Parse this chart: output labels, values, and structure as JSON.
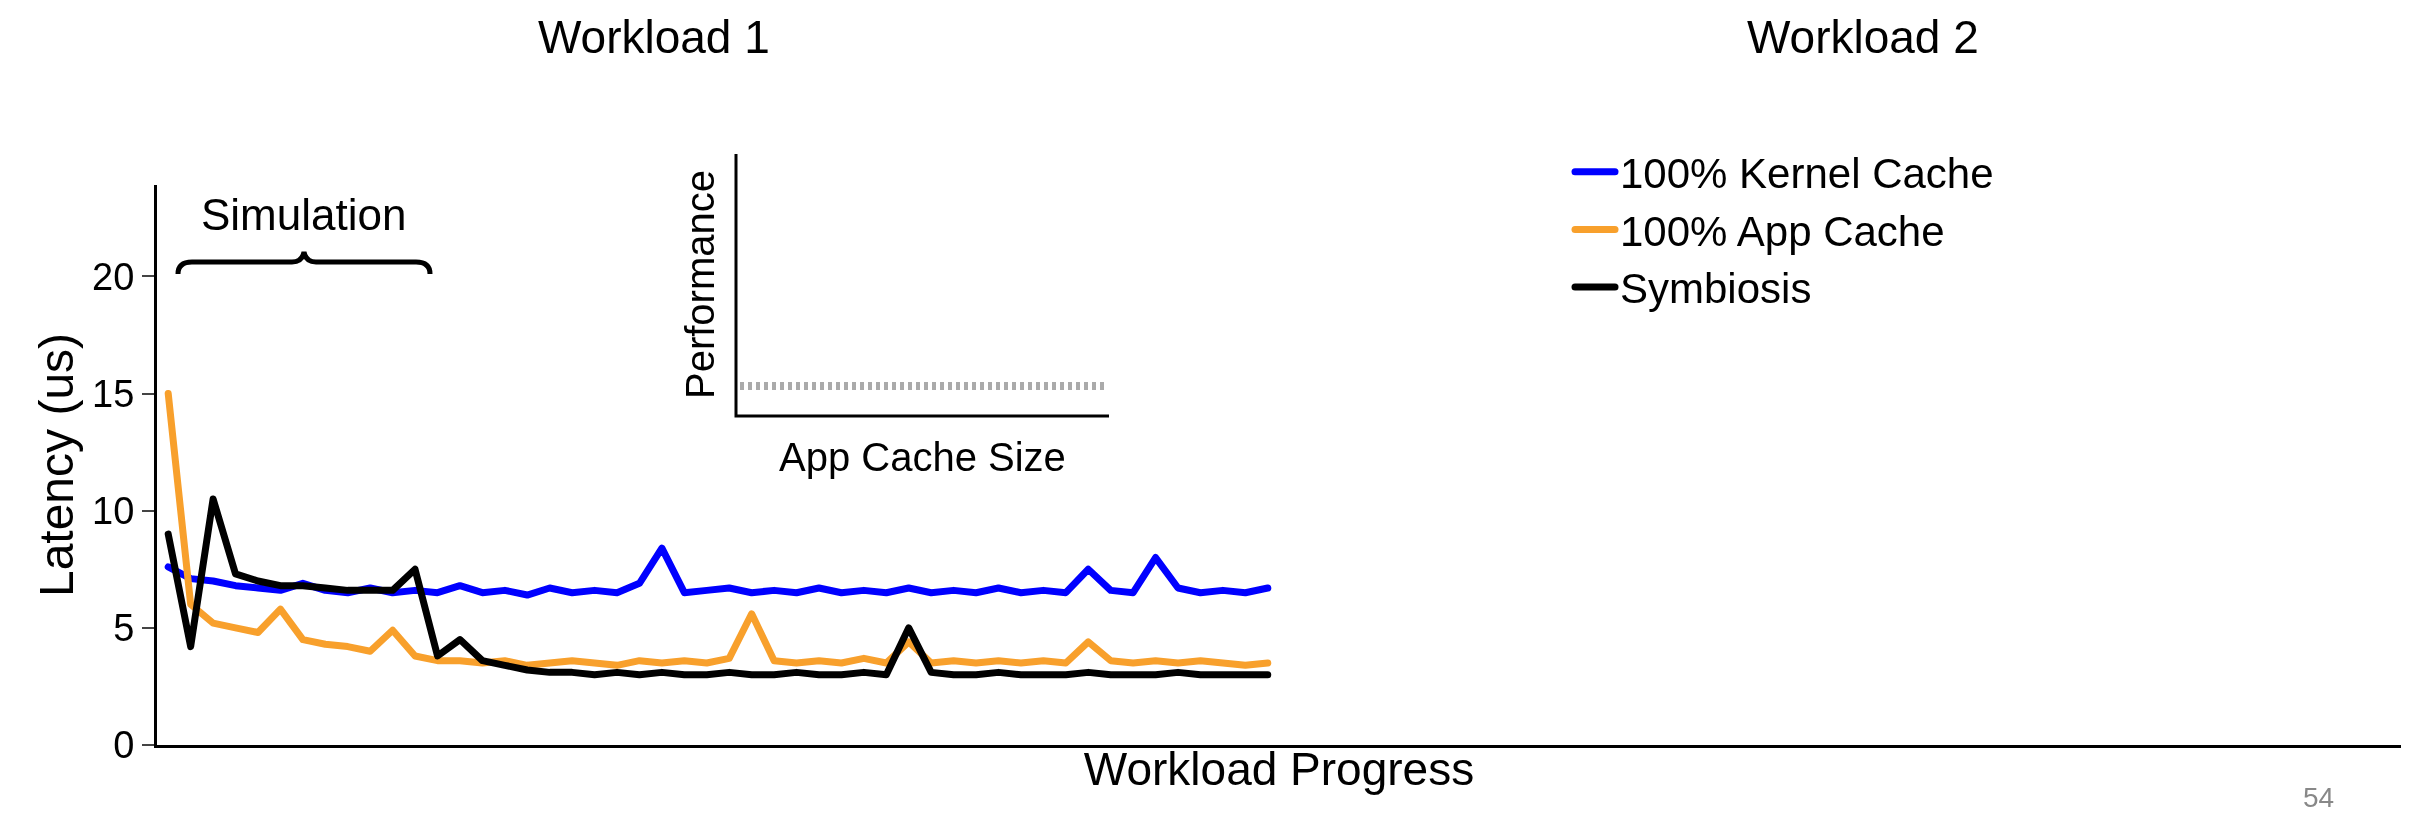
{
  "chart_data": {
    "type": "line",
    "xlabel": "Workload Progress",
    "ylabel": "Latency (us)",
    "annotations": [
      "Workload 1",
      "Workload 2",
      "Simulation",
      "Performance",
      "App Cache Size",
      "54"
    ],
    "categories": [
      null,
      null,
      null,
      null,
      null,
      null,
      null,
      null,
      null,
      null,
      null,
      null,
      null,
      null,
      null,
      null,
      null,
      null,
      null,
      null,
      null,
      null,
      null,
      null,
      null,
      null,
      null,
      null,
      null,
      null,
      null,
      null,
      null,
      null,
      null,
      null,
      null,
      null,
      null,
      null,
      null,
      null,
      null,
      null,
      null,
      null,
      null,
      null,
      null,
      null,
      null,
      null,
      null,
      null,
      null,
      null,
      null,
      null,
      null,
      null,
      null,
      null,
      null,
      null,
      null,
      null,
      null,
      null,
      null,
      null,
      null,
      null,
      null,
      null,
      null,
      null,
      null,
      null,
      null,
      null,
      null,
      null,
      null,
      null,
      null,
      null,
      null,
      null,
      null,
      null,
      null,
      null,
      null,
      null,
      null,
      null,
      null,
      null,
      null,
      null
    ],
    "series": [
      {
        "name": "100% Kernel Cache",
        "color": "#0000ff",
        "values": [
          7.6,
          7.1,
          7.0,
          6.8,
          6.7,
          6.6,
          6.9,
          6.6,
          6.5,
          6.7,
          6.5,
          6.6,
          6.5,
          6.8,
          6.5,
          6.6,
          6.4,
          6.7,
          6.5,
          6.6,
          6.5,
          6.9,
          8.4,
          6.5,
          6.6,
          6.7,
          6.5,
          6.6,
          6.5,
          6.7,
          6.5,
          6.6,
          6.5,
          6.7,
          6.5,
          6.6,
          6.5,
          6.7,
          6.5,
          6.6,
          6.5,
          7.5,
          6.6,
          6.5,
          8.0,
          6.7,
          6.5,
          6.6,
          6.5,
          6.7,
          null,
          null,
          null,
          null,
          null,
          null,
          null,
          null,
          null,
          null,
          null,
          null,
          null,
          null,
          null,
          null,
          null,
          null,
          null,
          null,
          null,
          null,
          null,
          null,
          null,
          null,
          null,
          null,
          null,
          null,
          null,
          null,
          null,
          null,
          null,
          null,
          null,
          null,
          null,
          null,
          null,
          null,
          null,
          null,
          null,
          null,
          null,
          null,
          null,
          null
        ]
      },
      {
        "name": "100% App Cache",
        "color": "#f8a02c",
        "values": [
          15,
          6.0,
          5.2,
          5.0,
          4.8,
          5.8,
          4.5,
          4.3,
          4.2,
          4.0,
          4.9,
          3.8,
          3.6,
          3.6,
          3.5,
          3.6,
          3.4,
          3.5,
          3.6,
          3.5,
          3.4,
          3.6,
          3.5,
          3.6,
          3.5,
          3.7,
          5.6,
          3.6,
          3.5,
          3.6,
          3.5,
          3.7,
          3.5,
          4.4,
          3.5,
          3.6,
          3.5,
          3.6,
          3.5,
          3.6,
          3.5,
          4.4,
          3.6,
          3.5,
          3.6,
          3.5,
          3.6,
          3.5,
          3.4,
          3.5,
          null,
          null,
          null,
          null,
          null,
          null,
          null,
          null,
          null,
          null,
          null,
          null,
          null,
          null,
          null,
          null,
          null,
          null,
          null,
          null,
          null,
          null,
          null,
          null,
          null,
          null,
          null,
          null,
          null,
          null,
          null,
          null,
          null,
          null,
          null,
          null,
          null,
          null,
          null,
          null,
          null,
          null,
          null,
          null,
          null,
          null,
          null,
          null,
          null,
          null
        ]
      },
      {
        "name": "Symbiosis",
        "color": "#000000",
        "values": [
          9.0,
          4.2,
          10.5,
          7.3,
          7.0,
          6.8,
          6.8,
          6.7,
          6.6,
          6.6,
          6.6,
          7.5,
          3.8,
          4.5,
          3.6,
          3.4,
          3.2,
          3.1,
          3.1,
          3.0,
          3.1,
          3.0,
          3.1,
          3.0,
          3.0,
          3.1,
          3.0,
          3.0,
          3.1,
          3.0,
          3.0,
          3.1,
          3.0,
          5.0,
          3.1,
          3.0,
          3.0,
          3.1,
          3.0,
          3.0,
          3.0,
          3.1,
          3.0,
          3.0,
          3.0,
          3.1,
          3.0,
          3.0,
          3.0,
          3.0,
          null,
          null,
          null,
          null,
          null,
          null,
          null,
          null,
          null,
          null,
          null,
          null,
          null,
          null,
          null,
          null,
          null,
          null,
          null,
          null,
          null,
          null,
          null,
          null,
          null,
          null,
          null,
          null,
          null,
          null,
          null,
          null,
          null,
          null,
          null,
          null,
          null,
          null,
          null,
          null,
          null,
          null,
          null,
          null,
          null,
          null,
          null,
          null,
          null,
          null
        ]
      }
    ],
    "ylim": [
      0,
      23.9
    ],
    "yticks": [
      0,
      5,
      10,
      15,
      20
    ],
    "grid": false,
    "legend": "top right"
  }
}
